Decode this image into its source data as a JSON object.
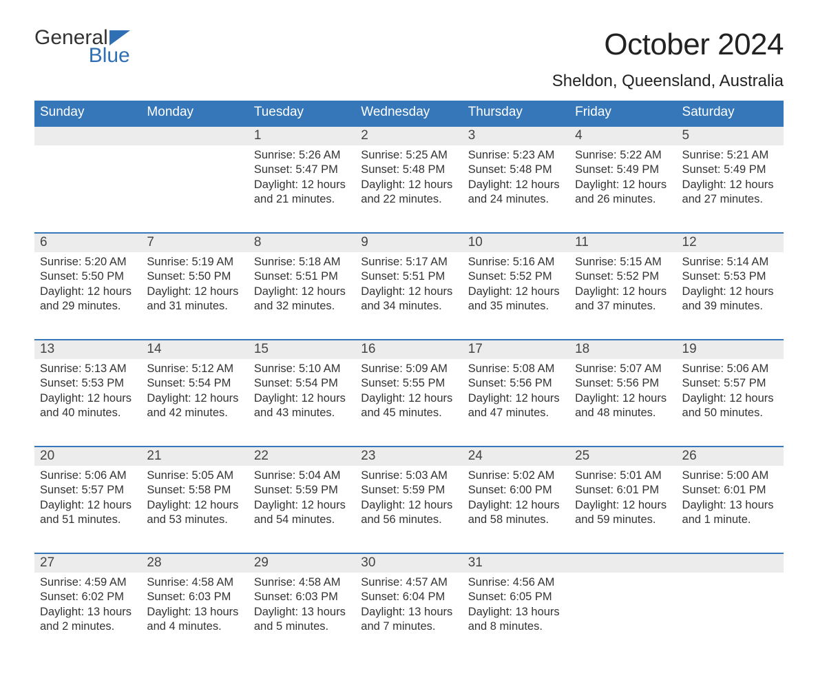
{
  "logo": {
    "word1": "General",
    "word2": "Blue",
    "accent_color": "#2f6fb3"
  },
  "title": "October 2024",
  "location": "Sheldon, Queensland, Australia",
  "colors": {
    "header_bg": "#3577b8",
    "header_text": "#ffffff",
    "daynum_bg": "#ececec",
    "rule": "#3577b8",
    "body_text": "#333333",
    "page_bg": "#ffffff"
  },
  "weekdays": [
    "Sunday",
    "Monday",
    "Tuesday",
    "Wednesday",
    "Thursday",
    "Friday",
    "Saturday"
  ],
  "weeks": [
    [
      {
        "n": "",
        "sunrise": "",
        "sunset": "",
        "daylight": ""
      },
      {
        "n": "",
        "sunrise": "",
        "sunset": "",
        "daylight": ""
      },
      {
        "n": "1",
        "sunrise": "Sunrise: 5:26 AM",
        "sunset": "Sunset: 5:47 PM",
        "daylight": "Daylight: 12 hours and 21 minutes."
      },
      {
        "n": "2",
        "sunrise": "Sunrise: 5:25 AM",
        "sunset": "Sunset: 5:48 PM",
        "daylight": "Daylight: 12 hours and 22 minutes."
      },
      {
        "n": "3",
        "sunrise": "Sunrise: 5:23 AM",
        "sunset": "Sunset: 5:48 PM",
        "daylight": "Daylight: 12 hours and 24 minutes."
      },
      {
        "n": "4",
        "sunrise": "Sunrise: 5:22 AM",
        "sunset": "Sunset: 5:49 PM",
        "daylight": "Daylight: 12 hours and 26 minutes."
      },
      {
        "n": "5",
        "sunrise": "Sunrise: 5:21 AM",
        "sunset": "Sunset: 5:49 PM",
        "daylight": "Daylight: 12 hours and 27 minutes."
      }
    ],
    [
      {
        "n": "6",
        "sunrise": "Sunrise: 5:20 AM",
        "sunset": "Sunset: 5:50 PM",
        "daylight": "Daylight: 12 hours and 29 minutes."
      },
      {
        "n": "7",
        "sunrise": "Sunrise: 5:19 AM",
        "sunset": "Sunset: 5:50 PM",
        "daylight": "Daylight: 12 hours and 31 minutes."
      },
      {
        "n": "8",
        "sunrise": "Sunrise: 5:18 AM",
        "sunset": "Sunset: 5:51 PM",
        "daylight": "Daylight: 12 hours and 32 minutes."
      },
      {
        "n": "9",
        "sunrise": "Sunrise: 5:17 AM",
        "sunset": "Sunset: 5:51 PM",
        "daylight": "Daylight: 12 hours and 34 minutes."
      },
      {
        "n": "10",
        "sunrise": "Sunrise: 5:16 AM",
        "sunset": "Sunset: 5:52 PM",
        "daylight": "Daylight: 12 hours and 35 minutes."
      },
      {
        "n": "11",
        "sunrise": "Sunrise: 5:15 AM",
        "sunset": "Sunset: 5:52 PM",
        "daylight": "Daylight: 12 hours and 37 minutes."
      },
      {
        "n": "12",
        "sunrise": "Sunrise: 5:14 AM",
        "sunset": "Sunset: 5:53 PM",
        "daylight": "Daylight: 12 hours and 39 minutes."
      }
    ],
    [
      {
        "n": "13",
        "sunrise": "Sunrise: 5:13 AM",
        "sunset": "Sunset: 5:53 PM",
        "daylight": "Daylight: 12 hours and 40 minutes."
      },
      {
        "n": "14",
        "sunrise": "Sunrise: 5:12 AM",
        "sunset": "Sunset: 5:54 PM",
        "daylight": "Daylight: 12 hours and 42 minutes."
      },
      {
        "n": "15",
        "sunrise": "Sunrise: 5:10 AM",
        "sunset": "Sunset: 5:54 PM",
        "daylight": "Daylight: 12 hours and 43 minutes."
      },
      {
        "n": "16",
        "sunrise": "Sunrise: 5:09 AM",
        "sunset": "Sunset: 5:55 PM",
        "daylight": "Daylight: 12 hours and 45 minutes."
      },
      {
        "n": "17",
        "sunrise": "Sunrise: 5:08 AM",
        "sunset": "Sunset: 5:56 PM",
        "daylight": "Daylight: 12 hours and 47 minutes."
      },
      {
        "n": "18",
        "sunrise": "Sunrise: 5:07 AM",
        "sunset": "Sunset: 5:56 PM",
        "daylight": "Daylight: 12 hours and 48 minutes."
      },
      {
        "n": "19",
        "sunrise": "Sunrise: 5:06 AM",
        "sunset": "Sunset: 5:57 PM",
        "daylight": "Daylight: 12 hours and 50 minutes."
      }
    ],
    [
      {
        "n": "20",
        "sunrise": "Sunrise: 5:06 AM",
        "sunset": "Sunset: 5:57 PM",
        "daylight": "Daylight: 12 hours and 51 minutes."
      },
      {
        "n": "21",
        "sunrise": "Sunrise: 5:05 AM",
        "sunset": "Sunset: 5:58 PM",
        "daylight": "Daylight: 12 hours and 53 minutes."
      },
      {
        "n": "22",
        "sunrise": "Sunrise: 5:04 AM",
        "sunset": "Sunset: 5:59 PM",
        "daylight": "Daylight: 12 hours and 54 minutes."
      },
      {
        "n": "23",
        "sunrise": "Sunrise: 5:03 AM",
        "sunset": "Sunset: 5:59 PM",
        "daylight": "Daylight: 12 hours and 56 minutes."
      },
      {
        "n": "24",
        "sunrise": "Sunrise: 5:02 AM",
        "sunset": "Sunset: 6:00 PM",
        "daylight": "Daylight: 12 hours and 58 minutes."
      },
      {
        "n": "25",
        "sunrise": "Sunrise: 5:01 AM",
        "sunset": "Sunset: 6:01 PM",
        "daylight": "Daylight: 12 hours and 59 minutes."
      },
      {
        "n": "26",
        "sunrise": "Sunrise: 5:00 AM",
        "sunset": "Sunset: 6:01 PM",
        "daylight": "Daylight: 13 hours and 1 minute."
      }
    ],
    [
      {
        "n": "27",
        "sunrise": "Sunrise: 4:59 AM",
        "sunset": "Sunset: 6:02 PM",
        "daylight": "Daylight: 13 hours and 2 minutes."
      },
      {
        "n": "28",
        "sunrise": "Sunrise: 4:58 AM",
        "sunset": "Sunset: 6:03 PM",
        "daylight": "Daylight: 13 hours and 4 minutes."
      },
      {
        "n": "29",
        "sunrise": "Sunrise: 4:58 AM",
        "sunset": "Sunset: 6:03 PM",
        "daylight": "Daylight: 13 hours and 5 minutes."
      },
      {
        "n": "30",
        "sunrise": "Sunrise: 4:57 AM",
        "sunset": "Sunset: 6:04 PM",
        "daylight": "Daylight: 13 hours and 7 minutes."
      },
      {
        "n": "31",
        "sunrise": "Sunrise: 4:56 AM",
        "sunset": "Sunset: 6:05 PM",
        "daylight": "Daylight: 13 hours and 8 minutes."
      },
      {
        "n": "",
        "sunrise": "",
        "sunset": "",
        "daylight": ""
      },
      {
        "n": "",
        "sunrise": "",
        "sunset": "",
        "daylight": ""
      }
    ]
  ]
}
